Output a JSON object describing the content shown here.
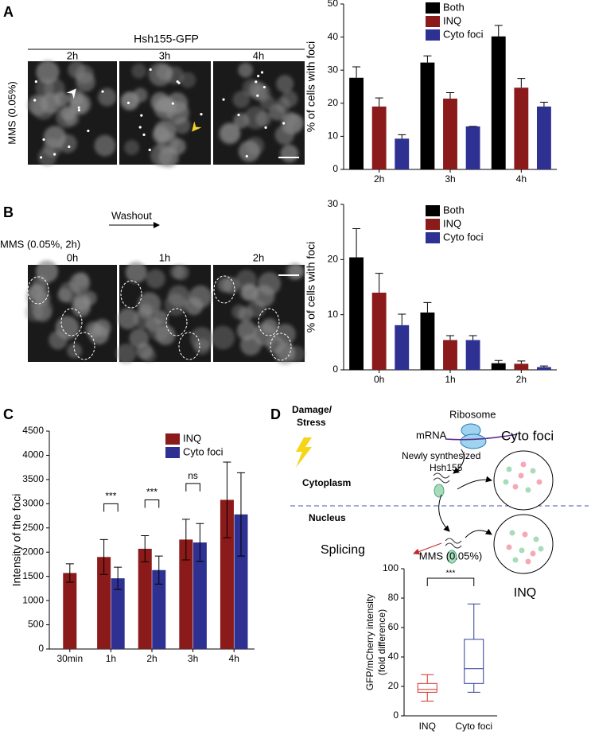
{
  "panel_labels": [
    "A",
    "B",
    "C",
    "D"
  ],
  "panel_a_image": {
    "title": "Hsh155-GFP",
    "condition": "MMS (0.05%)",
    "times": [
      "2h",
      "3h",
      "4h"
    ]
  },
  "panel_b_image": {
    "treatment": "Washout",
    "condition": "MMS (0.05%, 2h)",
    "times": [
      "0h",
      "1h",
      "2h"
    ]
  },
  "diagram": {
    "stimulus": [
      "Damage/",
      "Stress"
    ],
    "ribosome": "Ribosome",
    "mrna": "mRNA",
    "cyto_foci": "Cyto foci",
    "new_protein": [
      "Newly synthesized",
      "Hsh155"
    ],
    "cytoplasm": "Cytoplasm",
    "nucleus": "Nucleus",
    "splicing": "Splicing",
    "inq": "INQ"
  },
  "chart_data": [
    {
      "type": "bar",
      "ylabel": "% of cells with foci",
      "categories": [
        "2h",
        "3h",
        "4h"
      ],
      "series": [
        {
          "name": "Both",
          "color": "#000000",
          "values": [
            27.7,
            32.3,
            40.2
          ],
          "errors": [
            3.3,
            2,
            3.3
          ]
        },
        {
          "name": "INQ",
          "color": "#8b1a1a",
          "values": [
            19,
            21.4,
            24.7
          ],
          "errors": [
            2.6,
            1.8,
            2.8
          ]
        },
        {
          "name": "Cyto foci",
          "color": "#2e3192",
          "values": [
            9.3,
            13,
            19
          ],
          "errors": [
            1.2,
            0,
            1.3
          ]
        }
      ],
      "ylim": [
        0,
        50
      ],
      "yticks": [
        0,
        10,
        20,
        30,
        40,
        50
      ],
      "legend": "upper right"
    },
    {
      "type": "bar",
      "ylabel": "% of cells with foci",
      "categories": [
        "0h",
        "1h",
        "2h"
      ],
      "series": [
        {
          "name": "Both",
          "color": "#000000",
          "values": [
            20.4,
            10.4,
            1.2
          ],
          "errors": [
            5.2,
            1.8,
            0.5
          ]
        },
        {
          "name": "INQ",
          "color": "#8b1a1a",
          "values": [
            14,
            5.4,
            1.1
          ],
          "errors": [
            3.5,
            0.8,
            0.5
          ]
        },
        {
          "name": "Cyto foci",
          "color": "#2e3192",
          "values": [
            8.1,
            5.4,
            0.5
          ],
          "errors": [
            2,
            0.8,
            0.2
          ]
        }
      ],
      "ylim": [
        0,
        30
      ],
      "yticks": [
        0,
        10,
        20,
        30
      ],
      "legend": "upper right"
    },
    {
      "type": "bar",
      "ylabel": "Intensity of the foci",
      "categories": [
        "30min",
        "1h",
        "2h",
        "3h",
        "4h"
      ],
      "series": [
        {
          "name": "INQ",
          "color": "#8b1a1a",
          "values": [
            1570,
            1900,
            2070,
            2260,
            3080
          ],
          "errors": [
            190,
            360,
            270,
            420,
            780
          ]
        },
        {
          "name": "Cyto foci",
          "color": "#2e3192",
          "values": [
            null,
            1460,
            1630,
            2200,
            2780
          ],
          "errors": [
            null,
            230,
            290,
            390,
            860
          ]
        }
      ],
      "annotations": [
        null,
        "***",
        "***",
        "ns",
        null
      ],
      "ylim": [
        0,
        4500
      ],
      "yticks": [
        0,
        500,
        1000,
        1500,
        2000,
        2500,
        3000,
        3500,
        4000,
        4500
      ],
      "legend": "upper center"
    },
    {
      "type": "box",
      "title": "MMS (0.05%)",
      "ylabel": [
        "GFP/mCherry intensity",
        "(fold difference)"
      ],
      "categories": [
        "INQ",
        "Cyto foci"
      ],
      "colors": [
        "#d9302c",
        "#2f3f9a"
      ],
      "boxes": [
        {
          "min": 10,
          "q1": 16,
          "median": 18,
          "q3": 22,
          "max": 28
        },
        {
          "min": 16,
          "q1": 22,
          "median": 32,
          "q3": 52,
          "max": 76
        }
      ],
      "annotation": "***",
      "ylim": [
        0,
        100
      ],
      "yticks": [
        0,
        20,
        40,
        60,
        80,
        100
      ]
    }
  ]
}
